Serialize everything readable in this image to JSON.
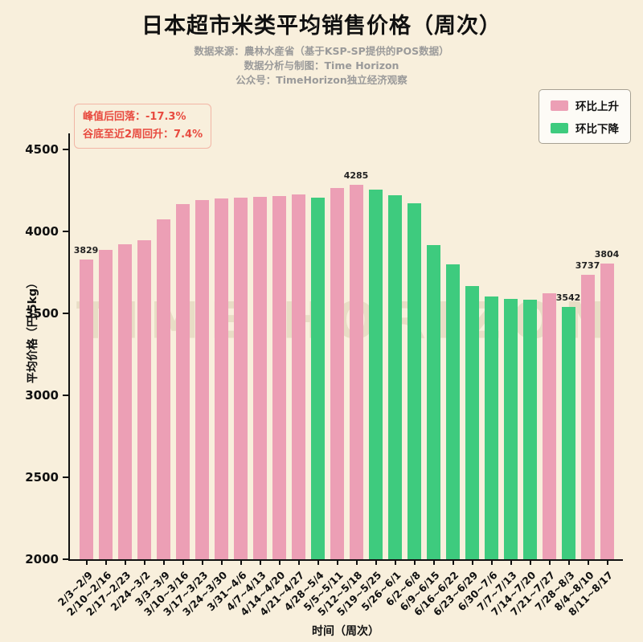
{
  "title": "日本超市米类平均销售价格（周次）",
  "subtitles": [
    "数据来源：農林水産省（基于KSP-SP提供的POS数据）",
    "数据分析与制图：Time Horizon",
    "公众号：TimeHorizon独立经济观察"
  ],
  "annotation": {
    "line1": "峰值后回落：-17.3%",
    "line2": "谷底至近2周回升：7.4%"
  },
  "legend": {
    "up_label": "环比上升",
    "down_label": "环比下降"
  },
  "watermark": "TIME HORIZON",
  "colors": {
    "up": "#ec9fb5",
    "down": "#3ecb7e",
    "background": "#f8efdc",
    "annotation_text": "#e84a3f",
    "axis": "#111111"
  },
  "chart_data": {
    "type": "bar",
    "title": "日本超市米类平均销售价格（周次）",
    "xlabel": "时间（周次）",
    "ylabel": "平均价格（円/5kg）",
    "ylim": [
      2000,
      4600
    ],
    "yticks": [
      2000,
      2500,
      3000,
      3500,
      4000,
      4500
    ],
    "grid": false,
    "legend_position": "top-right",
    "categories": [
      "2/3~2/9",
      "2/10~2/16",
      "2/17~2/23",
      "2/24~3/2",
      "3/3~3/9",
      "3/10~3/16",
      "3/17~3/23",
      "3/24~3/30",
      "3/31~4/6",
      "4/7~4/13",
      "4/14~4/20",
      "4/21~4/27",
      "4/28~5/4",
      "5/5~5/11",
      "5/12~5/18",
      "5/19~5/25",
      "5/26~6/1",
      "6/2~6/8",
      "6/9~6/15",
      "6/16~6/22",
      "6/23~6/29",
      "6/30~7/6",
      "7/7~7/13",
      "7/14~7/20",
      "7/21~7/27",
      "7/28~8/3",
      "8/4~8/10",
      "8/11~8/17"
    ],
    "values": [
      3829,
      3890,
      3925,
      3950,
      4075,
      4170,
      4195,
      4205,
      4208,
      4212,
      4218,
      4228,
      4210,
      4268,
      4285,
      4258,
      4220,
      4175,
      3920,
      3800,
      3670,
      3605,
      3590,
      3585,
      3625,
      3542,
      3737,
      3804
    ],
    "directions": [
      "up",
      "up",
      "up",
      "up",
      "up",
      "up",
      "up",
      "up",
      "up",
      "up",
      "up",
      "up",
      "down",
      "up",
      "up",
      "down",
      "down",
      "down",
      "down",
      "down",
      "down",
      "down",
      "down",
      "down",
      "up",
      "down",
      "up",
      "up"
    ],
    "bar_labels": {
      "0": "3829",
      "14": "4285",
      "25": "3542",
      "26": "3737",
      "27": "3804"
    }
  }
}
